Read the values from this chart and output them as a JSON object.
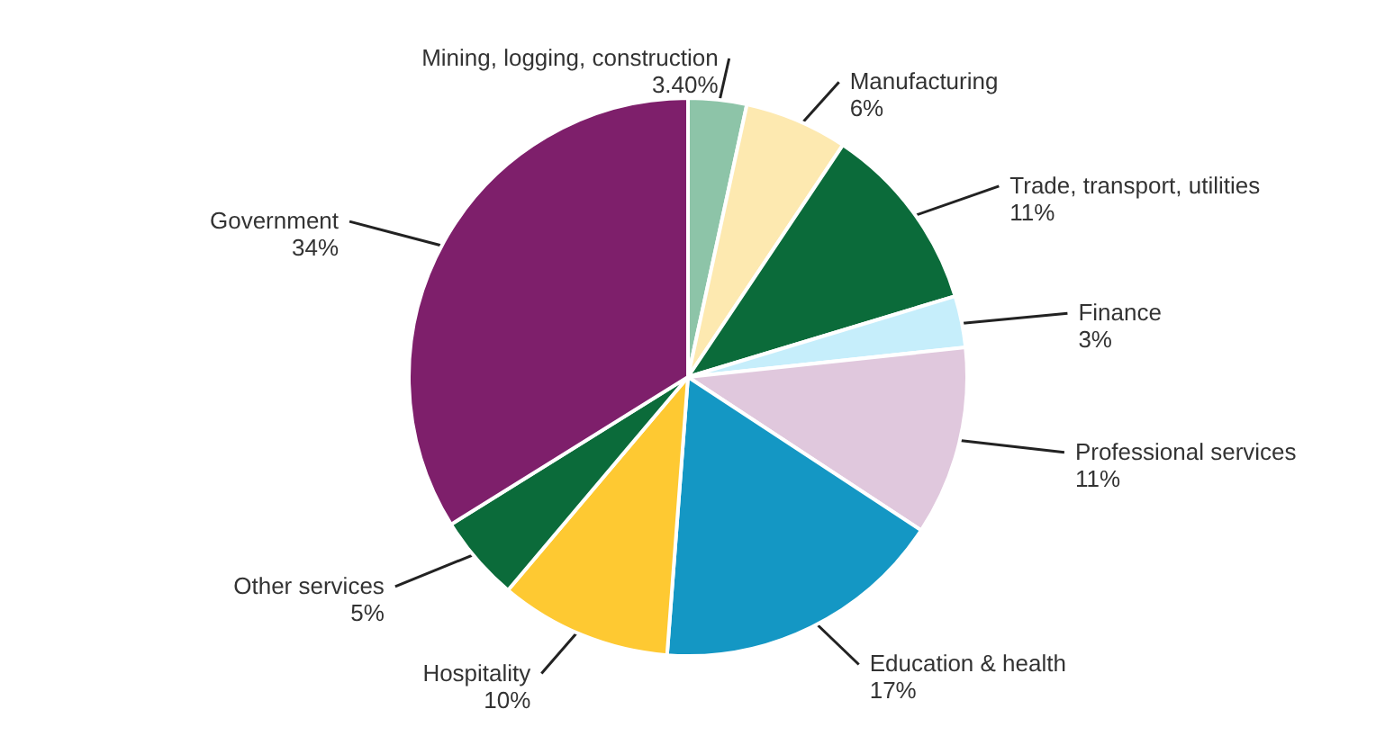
{
  "chart_data": {
    "type": "pie",
    "categories": [
      "Mining, logging, construction",
      "Manufacturing",
      "Trade, transport, utilities",
      "Finance",
      "Professional services",
      "Education & health",
      "Hospitality",
      "Other services",
      "Government"
    ],
    "values": [
      3.4,
      6,
      11,
      3,
      11,
      17,
      10,
      5,
      34
    ],
    "value_labels": [
      "3.40%",
      "6%",
      "11%",
      "3%",
      "11%",
      "17%",
      "10%",
      "5%",
      "34%"
    ],
    "colors": [
      "#8dc4a8",
      "#fde9b0",
      "#0b6b3a",
      "#c6eefb",
      "#e0c8dd",
      "#1497c4",
      "#fec932",
      "#0b6b3a",
      "#7e1f6b"
    ]
  }
}
